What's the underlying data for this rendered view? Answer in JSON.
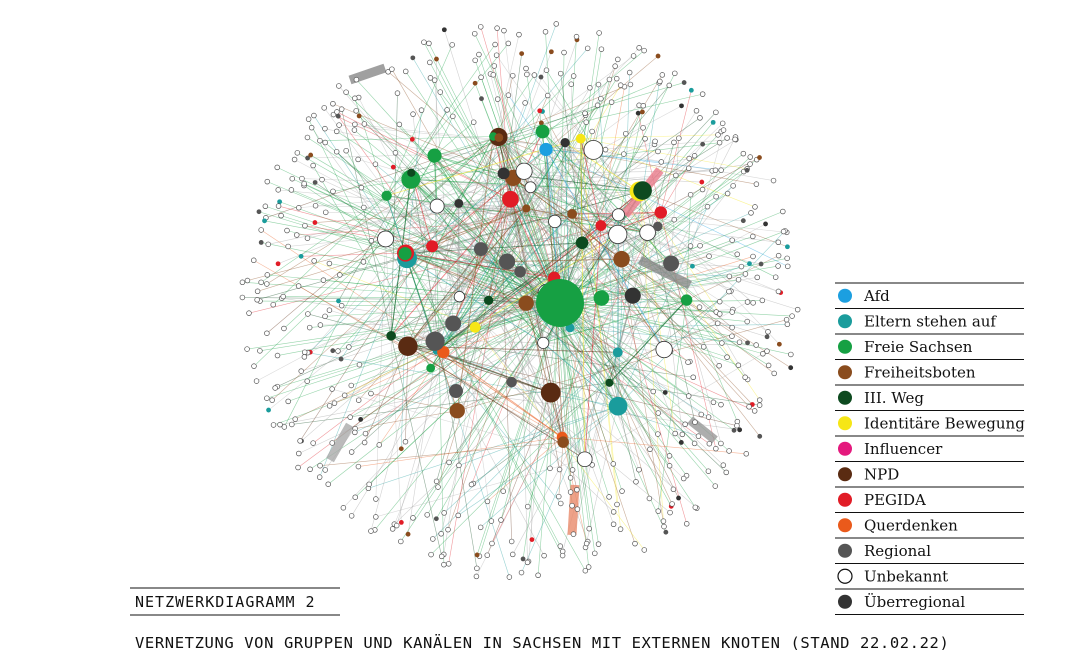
{
  "caption": {
    "label": "NETZWERKDIAGRAMM 2",
    "title": "VERNETZUNG VON GRUPPEN UND KANÄLEN IN SACHSEN MIT EXTERNEN KNOTEN (STAND 22.02.22)"
  },
  "legend": [
    {
      "name": "Afd",
      "color": "#1c9fe0"
    },
    {
      "name": "Eltern stehen auf",
      "color": "#1a9c9c"
    },
    {
      "name": "Freie Sachsen",
      "color": "#16a043"
    },
    {
      "name": "Freiheitsboten",
      "color": "#8a4c1e"
    },
    {
      "name": "III. Weg",
      "color": "#0d4a1f"
    },
    {
      "name": "Identitäre Bewegung",
      "color": "#f6e616"
    },
    {
      "name": "Influencer",
      "color": "#e4197d"
    },
    {
      "name": "NPD",
      "color": "#5a2b12"
    },
    {
      "name": "PEGIDA",
      "color": "#e11c26"
    },
    {
      "name": "Querdenken",
      "color": "#ea5a1b"
    },
    {
      "name": "Regional",
      "color": "#555555"
    },
    {
      "name": "Unbekannt",
      "color": "#ffffff"
    },
    {
      "name": "Überregional",
      "color": "#333333"
    }
  ]
}
